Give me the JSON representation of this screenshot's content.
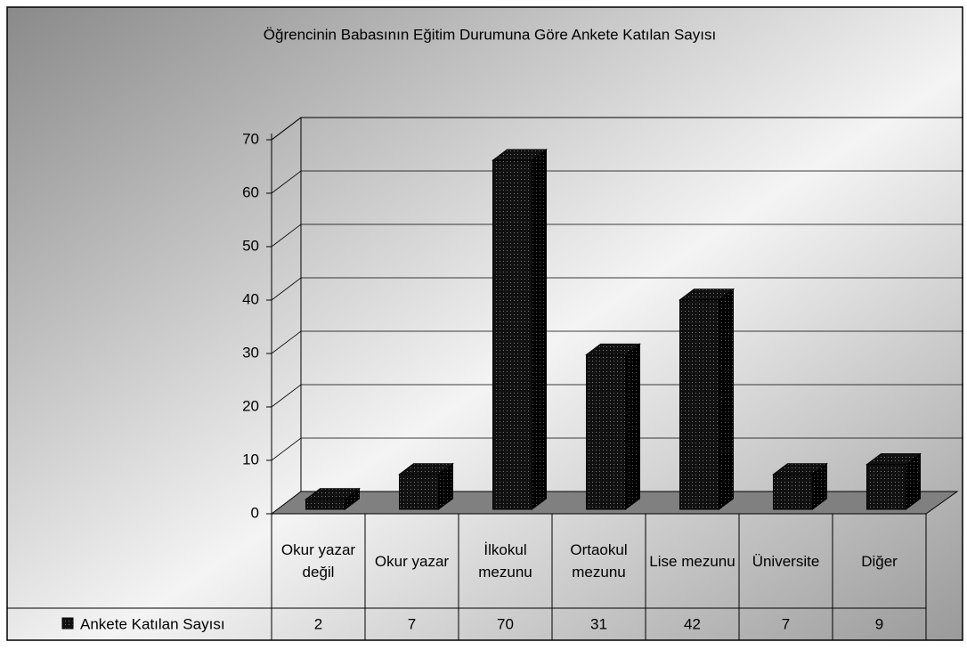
{
  "chart_data": {
    "type": "bar3d",
    "title": "Öğrencinin Babasının Eğitim Durumuna Göre Ankete Katılan Sayısı",
    "categories": [
      "Okur yazar değil",
      "Okur yazar",
      "İlkokul mezunu",
      "Ortaokul mezunu",
      "Lise mezunu",
      "Üniversite",
      "Diğer"
    ],
    "series": [
      {
        "name": "Ankete Katılan Sayısı",
        "color": "#111111",
        "values": [
          2,
          7,
          70,
          31,
          42,
          7,
          9
        ]
      }
    ],
    "ylim": [
      0,
      70
    ],
    "yticks": [
      0,
      10,
      20,
      30,
      40,
      50,
      60,
      70
    ],
    "grid": true,
    "data_table": true
  }
}
